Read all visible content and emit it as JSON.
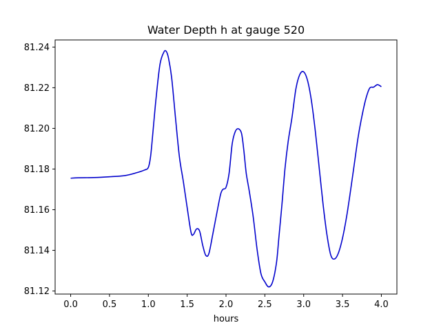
{
  "chart_data": {
    "type": "line",
    "title": "Water Depth h at gauge 520",
    "xlabel": "hours",
    "ylabel": "",
    "xlim": [
      -0.2,
      4.2
    ],
    "ylim": [
      81.1185,
      81.2435
    ],
    "xticks": [
      0.0,
      0.5,
      1.0,
      1.5,
      2.0,
      2.5,
      3.0,
      3.5,
      4.0
    ],
    "xtick_labels": [
      "0.0",
      "0.5",
      "1.0",
      "1.5",
      "2.0",
      "2.5",
      "3.0",
      "3.5",
      "4.0"
    ],
    "yticks": [
      81.12,
      81.14,
      81.16,
      81.18,
      81.2,
      81.22,
      81.24
    ],
    "ytick_labels": [
      "81.12",
      "81.14",
      "81.16",
      "81.18",
      "81.20",
      "81.22",
      "81.24"
    ],
    "grid": false,
    "series": [
      {
        "color": "#0000cc",
        "x": [
          0.0,
          0.1,
          0.3,
          0.5,
          0.7,
          0.85,
          0.95,
          1.0,
          1.03,
          1.06,
          1.1,
          1.15,
          1.2,
          1.23,
          1.26,
          1.3,
          1.35,
          1.4,
          1.45,
          1.5,
          1.55,
          1.58,
          1.62,
          1.66,
          1.7,
          1.74,
          1.78,
          1.83,
          1.88,
          1.93,
          1.96,
          2.0,
          2.04,
          2.08,
          2.12,
          2.16,
          2.2,
          2.23,
          2.26,
          2.3,
          2.35,
          2.4,
          2.45,
          2.5,
          2.55,
          2.6,
          2.65,
          2.68,
          2.72,
          2.76,
          2.8,
          2.85,
          2.9,
          2.95,
          3.0,
          3.05,
          3.1,
          3.15,
          3.2,
          3.25,
          3.3,
          3.35,
          3.4,
          3.45,
          3.5,
          3.55,
          3.6,
          3.65,
          3.7,
          3.75,
          3.8,
          3.85,
          3.9,
          3.95,
          4.0
        ],
        "y": [
          81.1755,
          81.1757,
          81.1758,
          81.1762,
          81.1768,
          81.1782,
          81.1795,
          81.1808,
          81.1865,
          81.1985,
          81.215,
          81.2315,
          81.2375,
          81.2379,
          81.2345,
          81.225,
          81.205,
          81.186,
          81.174,
          81.161,
          81.1488,
          81.1478,
          81.1505,
          81.1495,
          81.1425,
          81.1375,
          81.1385,
          81.148,
          81.158,
          81.1675,
          81.17,
          81.171,
          81.178,
          81.1925,
          81.1985,
          81.1998,
          81.1975,
          81.189,
          81.178,
          81.169,
          81.1565,
          81.1405,
          81.1285,
          81.1245,
          81.122,
          81.1245,
          81.134,
          81.146,
          81.1625,
          81.1805,
          81.1935,
          81.2055,
          81.2195,
          81.2265,
          81.2278,
          81.2235,
          81.2135,
          81.1985,
          81.1805,
          81.1625,
          81.1475,
          81.1375,
          81.1358,
          81.139,
          81.146,
          81.156,
          81.1685,
          81.182,
          81.1955,
          81.206,
          81.2145,
          81.2198,
          81.2203,
          81.2215,
          81.2205
        ]
      }
    ]
  }
}
